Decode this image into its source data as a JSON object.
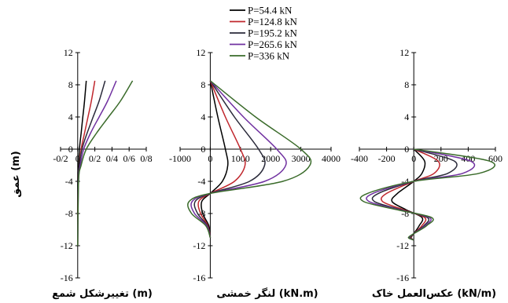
{
  "legend": {
    "position": "top-center",
    "entries": [
      {
        "label": "P=54.4 kN",
        "color": "#000000"
      },
      {
        "label": "P=124.8 kN",
        "color": "#c0272d"
      },
      {
        "label": "P=195.2 kN",
        "color": "#2a2a3a"
      },
      {
        "label": "P=265.6 kN",
        "color": "#7030a0"
      },
      {
        "label": "P=336 kN",
        "color": "#3a6b2a"
      }
    ]
  },
  "y_axis_label": "عمق (m)",
  "chart_data": [
    {
      "type": "line",
      "xlabel": "تغییرشکل شمع (m)",
      "ylabel": "",
      "xlim": [
        -0.2,
        0.8
      ],
      "ylim": [
        -16,
        12
      ],
      "x_ticks": [
        "-0/2",
        "0",
        "0/2",
        "0/4",
        "0/6",
        "0/8"
      ],
      "x_tick_values": [
        -0.2,
        0,
        0.2,
        0.4,
        0.6,
        0.8
      ],
      "y_ticks": [
        "-16",
        "-12",
        "-8",
        "-4",
        "0",
        "4",
        "8",
        "12"
      ],
      "y_tick_values": [
        -16,
        -12,
        -8,
        -4,
        0,
        4,
        8,
        12
      ],
      "grid": false,
      "series": [
        {
          "name": "P=54.4 kN",
          "color": "#000000",
          "points": [
            [
              0.1,
              8.5
            ],
            [
              0.08,
              6
            ],
            [
              0.06,
              4
            ],
            [
              0.04,
              2
            ],
            [
              0.02,
              0
            ],
            [
              0.01,
              -2
            ],
            [
              0,
              -4
            ],
            [
              0,
              -12
            ]
          ]
        },
        {
          "name": "P=124.8 kN",
          "color": "#c0272d",
          "points": [
            [
              0.2,
              8.5
            ],
            [
              0.16,
              6
            ],
            [
              0.12,
              4
            ],
            [
              0.08,
              2
            ],
            [
              0.04,
              0
            ],
            [
              0.02,
              -2
            ],
            [
              0.005,
              -4
            ],
            [
              0,
              -12
            ]
          ]
        },
        {
          "name": "P=195.2 kN",
          "color": "#2a2a3a",
          "points": [
            [
              0.32,
              8.5
            ],
            [
              0.25,
              6
            ],
            [
              0.18,
              4
            ],
            [
              0.11,
              2
            ],
            [
              0.05,
              0
            ],
            [
              0.02,
              -2
            ],
            [
              0.005,
              -4
            ],
            [
              0,
              -12
            ]
          ]
        },
        {
          "name": "P=265.6 kN",
          "color": "#7030a0",
          "points": [
            [
              0.45,
              8.5
            ],
            [
              0.35,
              6
            ],
            [
              0.25,
              4
            ],
            [
              0.15,
              2
            ],
            [
              0.07,
              0
            ],
            [
              0.03,
              -2
            ],
            [
              0.01,
              -4
            ],
            [
              0,
              -12
            ]
          ]
        },
        {
          "name": "P=336 kN",
          "color": "#3a6b2a",
          "points": [
            [
              0.64,
              8.5
            ],
            [
              0.5,
              6
            ],
            [
              0.36,
              4
            ],
            [
              0.22,
              2
            ],
            [
              0.1,
              0
            ],
            [
              0.04,
              -2
            ],
            [
              0.01,
              -4
            ],
            [
              0,
              -12
            ]
          ]
        }
      ]
    },
    {
      "type": "line",
      "xlabel": "لنگر خمشی (kN.m)",
      "ylabel": "",
      "xlim": [
        -1000,
        4000
      ],
      "ylim": [
        -16,
        12
      ],
      "x_ticks": [
        "-1000",
        "0",
        "1000",
        "2000",
        "3000",
        "4000"
      ],
      "x_tick_values": [
        -1000,
        0,
        1000,
        2000,
        3000,
        4000
      ],
      "y_ticks": [
        "-16",
        "-12",
        "-8",
        "-4",
        "0",
        "4",
        "8",
        "12"
      ],
      "y_tick_values": [
        -16,
        -12,
        -8,
        -4,
        0,
        4,
        8,
        12
      ],
      "grid": false,
      "series": [
        {
          "name": "P=54.4 kN",
          "color": "#000000",
          "points": [
            [
              0,
              8.5
            ],
            [
              250,
              4
            ],
            [
              500,
              0
            ],
            [
              580,
              -2
            ],
            [
              400,
              -4
            ],
            [
              0,
              -5.5
            ],
            [
              -280,
              -6.5
            ],
            [
              -250,
              -8
            ],
            [
              -50,
              -9.5
            ],
            [
              0,
              -11
            ]
          ]
        },
        {
          "name": "P=124.8 kN",
          "color": "#c0272d",
          "points": [
            [
              0,
              8.5
            ],
            [
              500,
              4
            ],
            [
              1000,
              0
            ],
            [
              1150,
              -2
            ],
            [
              800,
              -4
            ],
            [
              0,
              -5.5
            ],
            [
              -380,
              -6.5
            ],
            [
              -320,
              -8
            ],
            [
              -80,
              -9.5
            ],
            [
              0,
              -11
            ]
          ]
        },
        {
          "name": "P=195.2 kN",
          "color": "#2a2a3a",
          "points": [
            [
              0,
              8.5
            ],
            [
              800,
              4
            ],
            [
              1600,
              0
            ],
            [
              1800,
              -2
            ],
            [
              1300,
              -4
            ],
            [
              0,
              -5.5
            ],
            [
              -500,
              -6.5
            ],
            [
              -420,
              -8
            ],
            [
              -100,
              -9.5
            ],
            [
              0,
              -11
            ]
          ]
        },
        {
          "name": "P=265.6 kN",
          "color": "#7030a0",
          "points": [
            [
              0,
              8.5
            ],
            [
              1100,
              4
            ],
            [
              2200,
              0
            ],
            [
              2500,
              -2
            ],
            [
              1800,
              -4
            ],
            [
              0,
              -5.5
            ],
            [
              -600,
              -6.5
            ],
            [
              -520,
              -8
            ],
            [
              -120,
              -9.5
            ],
            [
              0,
              -11
            ]
          ]
        },
        {
          "name": "P=336 kN",
          "color": "#3a6b2a",
          "points": [
            [
              0,
              8.5
            ],
            [
              1500,
              4
            ],
            [
              3000,
              0
            ],
            [
              3300,
              -2
            ],
            [
              2400,
              -4
            ],
            [
              0,
              -5.5
            ],
            [
              -700,
              -6.5
            ],
            [
              -620,
              -8
            ],
            [
              -150,
              -9.5
            ],
            [
              0,
              -11
            ]
          ]
        }
      ]
    },
    {
      "type": "line",
      "xlabel": "عکس‌العمل خاک (kN/m)",
      "ylabel": "",
      "xlim": [
        -400,
        600
      ],
      "ylim": [
        -16,
        12
      ],
      "x_ticks": [
        "-400",
        "-200",
        "0",
        "200",
        "400",
        "600"
      ],
      "x_tick_values": [
        -400,
        -200,
        0,
        200,
        400,
        600
      ],
      "y_ticks": [
        "-16",
        "-12",
        "-8",
        "-4",
        "0",
        "4",
        "8",
        "12"
      ],
      "y_tick_values": [
        -16,
        -12,
        -8,
        -4,
        0,
        4,
        8,
        12
      ],
      "grid": false,
      "series": [
        {
          "name": "P=54.4 kN",
          "color": "#000000",
          "points": [
            [
              0,
              0
            ],
            [
              80,
              -1.5
            ],
            [
              60,
              -3
            ],
            [
              0,
              -4
            ],
            [
              -120,
              -5.5
            ],
            [
              -160,
              -6.5
            ],
            [
              -60,
              -7.5
            ],
            [
              60,
              -8.5
            ],
            [
              40,
              -9.5
            ],
            [
              0,
              -10.5
            ],
            [
              -20,
              -11
            ],
            [
              0,
              -11.3
            ]
          ]
        },
        {
          "name": "P=124.8 kN",
          "color": "#c0272d",
          "points": [
            [
              0,
              0
            ],
            [
              180,
              -1.5
            ],
            [
              150,
              -3
            ],
            [
              0,
              -4
            ],
            [
              -200,
              -5.5
            ],
            [
              -230,
              -6.5
            ],
            [
              -80,
              -7.5
            ],
            [
              80,
              -8.5
            ],
            [
              60,
              -9.5
            ],
            [
              0,
              -10.5
            ],
            [
              -25,
              -11
            ],
            [
              0,
              -11.3
            ]
          ]
        },
        {
          "name": "P=195.2 kN",
          "color": "#2a2a3a",
          "points": [
            [
              0,
              0
            ],
            [
              300,
              -1.5
            ],
            [
              250,
              -3
            ],
            [
              0,
              -4
            ],
            [
              -260,
              -5.5
            ],
            [
              -290,
              -6.5
            ],
            [
              -100,
              -7.5
            ],
            [
              100,
              -8.5
            ],
            [
              75,
              -9.5
            ],
            [
              0,
              -10.5
            ],
            [
              -30,
              -11
            ],
            [
              0,
              -11.3
            ]
          ]
        },
        {
          "name": "P=265.6 kN",
          "color": "#7030a0",
          "points": [
            [
              0,
              0
            ],
            [
              420,
              -1.5
            ],
            [
              360,
              -3
            ],
            [
              0,
              -4
            ],
            [
              -300,
              -5.5
            ],
            [
              -330,
              -6.5
            ],
            [
              -115,
              -7.5
            ],
            [
              115,
              -8.5
            ],
            [
              85,
              -9.5
            ],
            [
              0,
              -10.5
            ],
            [
              -35,
              -11
            ],
            [
              0,
              -11.3
            ]
          ]
        },
        {
          "name": "P=336 kN",
          "color": "#3a6b2a",
          "points": [
            [
              0,
              0
            ],
            [
              560,
              -1.5
            ],
            [
              480,
              -3
            ],
            [
              0,
              -4
            ],
            [
              -340,
              -5.5
            ],
            [
              -370,
              -6.5
            ],
            [
              -130,
              -7.5
            ],
            [
              130,
              -8.5
            ],
            [
              95,
              -9.5
            ],
            [
              0,
              -10.5
            ],
            [
              -40,
              -11
            ],
            [
              0,
              -11.3
            ]
          ]
        }
      ]
    }
  ]
}
